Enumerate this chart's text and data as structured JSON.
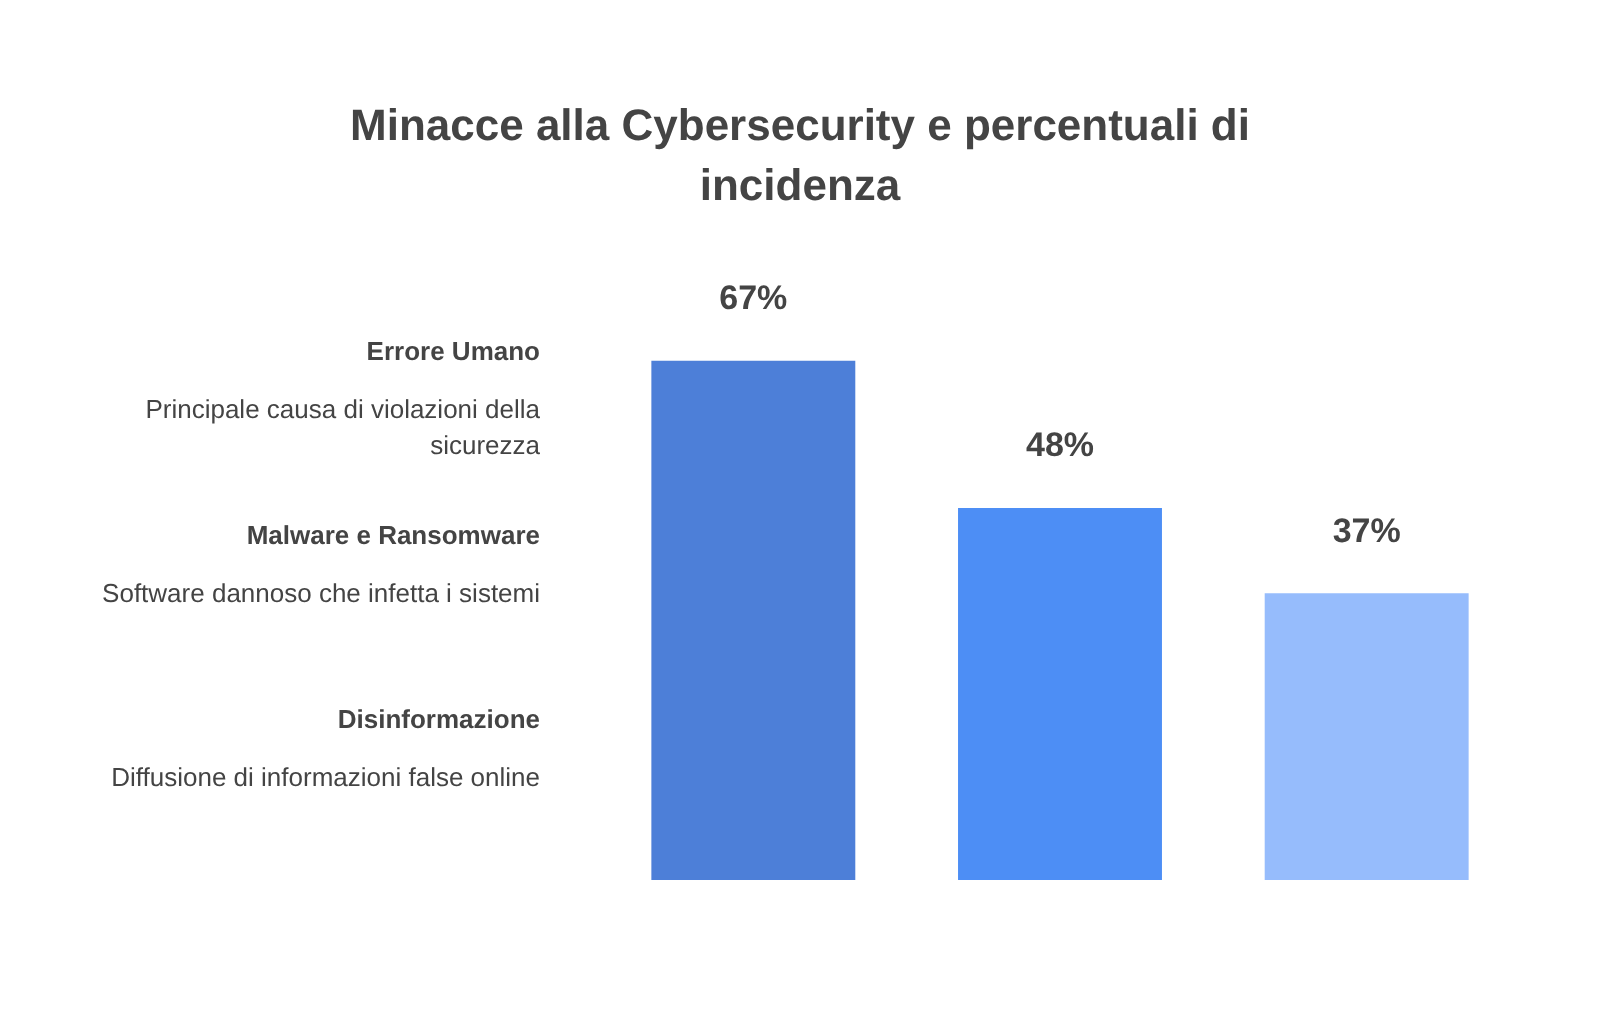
{
  "chart_data": {
    "type": "bar",
    "title": "Minacce alla Cybersecurity e percentuali di incidenza",
    "categories": [
      null,
      null,
      null
    ],
    "values": [
      67,
      48,
      37
    ],
    "colors": [
      "#4d7fd8",
      "#4d8ef5",
      "#96bcfc"
    ],
    "value_labels": [
      "67%",
      "48%",
      "37%"
    ],
    "annotations": [
      "Errore Umano",
      "Principale causa di violazioni della sicurezza",
      "Malware e Ransomware",
      "Software dannoso che infetta i sistemi",
      "Disinformazione",
      "Diffusione di informazioni false online"
    ],
    "tick_labels": false
  }
}
